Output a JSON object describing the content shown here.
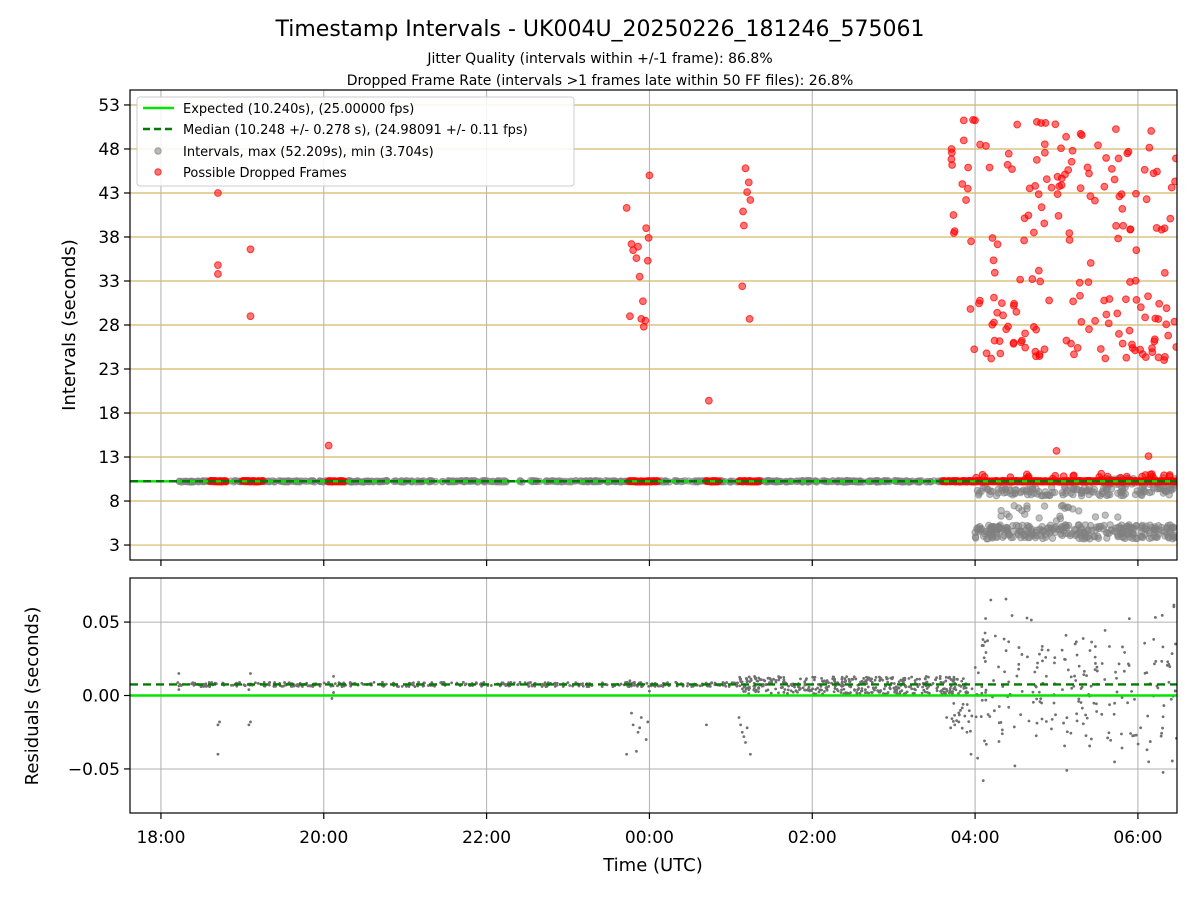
{
  "chart_data": [
    {
      "type": "scatter",
      "panel": "top",
      "title": "Timestamp Intervals - UK004U_20250226_181246_575061",
      "subtitle_lines": [
        "Jitter Quality (intervals within +/-1 frame): 86.8%",
        "Dropped Frame Rate (intervals >1 frames late within 50 FF files): 26.8%"
      ],
      "xlabel": "",
      "ylabel": "Intervals (seconds)",
      "x_tick_labels": [
        "18:00",
        "20:00",
        "22:00",
        "00:00",
        "02:00",
        "04:00",
        "06:00"
      ],
      "y_ticks": [
        3,
        8,
        13,
        18,
        23,
        28,
        33,
        38,
        43,
        48,
        53
      ],
      "ylim": [
        1.3,
        54.7
      ],
      "xlim_hours": [
        17.62,
        30.48
      ],
      "grid": "vertical gray at hour ticks; horizontal gold at y ticks",
      "legend_placement": "top-left",
      "legend": [
        {
          "label": "Expected (10.240s), (25.00000 fps)",
          "style": "solid-line",
          "color": "#00e600"
        },
        {
          "label": "Median (10.248 +/- 0.278 s), (24.98091 +/- 0.11 fps)",
          "style": "dashed-line",
          "color": "#007a00"
        },
        {
          "label": "Intervals, max (52.209s), min (3.704s)",
          "style": "dot",
          "color": "#808080"
        },
        {
          "label": "Possible Dropped Frames",
          "style": "dot",
          "color": "#ff0000"
        }
      ],
      "expected_interval": 10.24,
      "median_interval": 10.248,
      "series": [
        {
          "name": "Intervals, max (52.209s), min (3.704s)",
          "color": "#808080",
          "bands": [
            {
              "x_range": [
                18.2,
                30.48
              ],
              "y_center": 10.24,
              "spread": 0.08
            },
            {
              "x_range": [
                29.5,
                30.48
              ],
              "y_center": 10.24,
              "spread": 0.4
            }
          ],
          "clusters": [
            {
              "x_range": [
                28.0,
                30.48
              ],
              "y_range": [
                8.6,
                9.6
              ],
              "count": 130
            },
            {
              "x_range": [
                28.0,
                30.48
              ],
              "y_range": [
                3.7,
                5.3
              ],
              "count": 260
            },
            {
              "x_range": [
                28.2,
                29.9
              ],
              "y_range": [
                5.5,
                7.5
              ],
              "count": 25
            }
          ]
        },
        {
          "name": "Possible Dropped Frames",
          "color": "#ff0000",
          "segments": [
            [
              18.6,
              18.8
            ],
            [
              19.0,
              19.25
            ],
            [
              20.05,
              20.25
            ],
            [
              23.75,
              24.1
            ],
            [
              24.7,
              24.85
            ],
            [
              25.1,
              25.35
            ],
            [
              27.6,
              28.0
            ],
            [
              28.0,
              30.48
            ]
          ],
          "segment_y": 10.24,
          "x": [
            18.7,
            18.7,
            18.7,
            19.1,
            19.1,
            20.06,
            24.73,
            23.72,
            23.76,
            23.78,
            23.8,
            23.84,
            23.86,
            23.88,
            23.9,
            23.92,
            23.93,
            23.95,
            23.96,
            23.98,
            23.99,
            24.0,
            25.15,
            25.14,
            25.18,
            25.22,
            25.24,
            25.2,
            25.16,
            25.23,
            29.0,
            29.55,
            29.98,
            30.13
          ],
          "y": [
            43.0,
            33.8,
            34.8,
            36.6,
            29.0,
            14.3,
            19.4,
            41.3,
            29.0,
            37.2,
            36.5,
            35.6,
            36.9,
            33.5,
            28.7,
            30.7,
            27.8,
            28.5,
            39.0,
            35.3,
            37.9,
            45.0,
            40.9,
            32.4,
            45.8,
            44.2,
            42.2,
            43.1,
            39.3,
            28.7,
            13.7,
            11.1,
            36.5,
            13.1
          ],
          "clusters": [
            {
              "x_range": [
                27.7,
                30.48
              ],
              "y_range": [
                42.0,
                51.5
              ],
              "count": 70
            },
            {
              "x_range": [
                27.7,
                30.48
              ],
              "y_range": [
                36.0,
                41.5
              ],
              "count": 25
            },
            {
              "x_range": [
                27.9,
                30.48
              ],
              "y_range": [
                24.0,
                31.5
              ],
              "count": 80
            },
            {
              "x_range": [
                27.8,
                30.48
              ],
              "y_range": [
                32.5,
                35.5
              ],
              "count": 12
            },
            {
              "x_range": [
                28.0,
                30.48
              ],
              "y_range": [
                10.5,
                11.2
              ],
              "count": 25
            }
          ]
        }
      ]
    },
    {
      "type": "scatter",
      "panel": "bottom",
      "xlabel": "Time (UTC)",
      "ylabel": "Residuals (seconds)",
      "x_tick_labels": [
        "18:00",
        "20:00",
        "22:00",
        "00:00",
        "02:00",
        "04:00",
        "06:00"
      ],
      "y_tick_labels": [
        "0.05",
        "0.00",
        "−0.05"
      ],
      "y_ticks": [
        0.05,
        0.0,
        -0.05
      ],
      "ylim": [
        -0.08,
        0.08
      ],
      "xlim_hours": [
        17.62,
        30.48
      ],
      "grid": "horizontal gray at y ticks; vertical gray at hour ticks",
      "expected_residual": 0.0,
      "median_residual": 0.0075,
      "series": [
        {
          "name": "",
          "color": "#707070",
          "bands": [
            {
              "x_range": [
                18.2,
                25.1
              ],
              "y_center": 0.0075,
              "spread": 0.0015
            },
            {
              "x_range": [
                25.1,
                27.9
              ],
              "y_center": 0.007,
              "spread": 0.006
            }
          ],
          "x": [
            18.22,
            18.22,
            18.7,
            18.72,
            18.7,
            19.08,
            19.1,
            19.1,
            19.08,
            20.12,
            20.12,
            20.1,
            23.72,
            23.76,
            23.78,
            23.8,
            23.84,
            23.86,
            23.88,
            23.9,
            23.96,
            23.98,
            24.0,
            24.7,
            25.1,
            25.12,
            25.14,
            25.16,
            25.18,
            25.2,
            25.24,
            25.3,
            27.65,
            27.7,
            27.75,
            27.8,
            27.9,
            27.95
          ],
          "y": [
            0.015,
            0.004,
            -0.02,
            -0.018,
            -0.04,
            -0.02,
            -0.018,
            0.015,
            0.004,
            0.013,
            0.002,
            -0.002,
            -0.04,
            0.01,
            -0.012,
            -0.02,
            -0.038,
            -0.025,
            -0.022,
            -0.015,
            -0.03,
            -0.018,
            0.003,
            -0.02,
            -0.015,
            -0.02,
            -0.025,
            -0.028,
            -0.032,
            -0.022,
            -0.04,
            0.012,
            -0.015,
            -0.022,
            -0.02,
            -0.018,
            -0.025,
            -0.04
          ],
          "clusters": [
            {
              "x_range": [
                27.7,
                28.1
              ],
              "y_range": [
                -0.025,
                0.012
              ],
              "count": 30
            },
            {
              "x_range": [
                28.0,
                30.48
              ],
              "y_range": [
                -0.05,
                0.08
              ],
              "count": 220
            }
          ]
        }
      ]
    }
  ]
}
